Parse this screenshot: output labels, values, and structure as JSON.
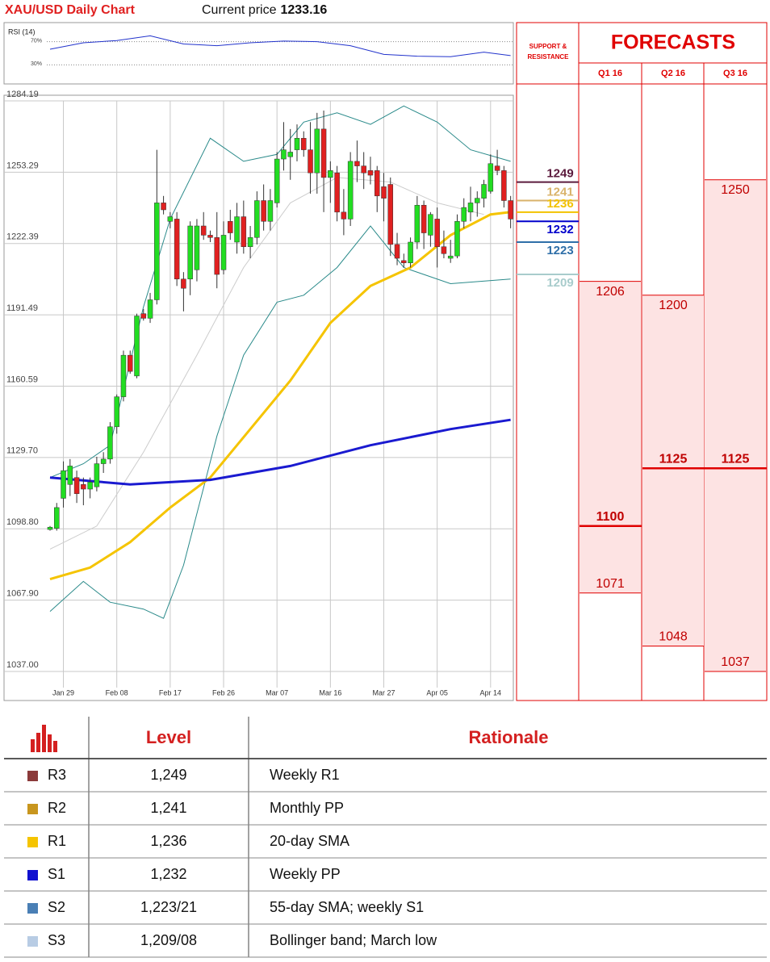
{
  "header": {
    "title": "XAU/USD Daily Chart",
    "price_label": "Current price",
    "price": 1233.16
  },
  "chart_data": {
    "type": "candlestick",
    "categories": [
      null,
      null,
      "Jan 29",
      null,
      null,
      null,
      null,
      null,
      null,
      null,
      "Feb 08",
      null,
      null,
      null,
      null,
      null,
      null,
      null,
      "Feb 17",
      null,
      null,
      null,
      null,
      null,
      null,
      null,
      "Feb 26",
      null,
      null,
      null,
      null,
      null,
      null,
      null,
      "Mar 07",
      null,
      null,
      null,
      null,
      null,
      null,
      null,
      "Mar 16",
      null,
      null,
      null,
      null,
      null,
      null,
      null,
      "Mar 27",
      null,
      null,
      null,
      null,
      null,
      null,
      null,
      "Apr 05",
      null,
      null,
      null,
      null,
      null,
      null,
      null,
      "Apr 14",
      null,
      null,
      null
    ],
    "open": [
      1098.5,
      1099,
      1112,
      1118,
      1121,
      1118,
      1116,
      1117,
      1127,
      1129,
      1143,
      1156,
      1174,
      1165,
      1192,
      1190,
      1198,
      1240,
      1232,
      1233,
      1207,
      1207,
      1211,
      1230,
      1226,
      1225,
      1211,
      1232,
      1223,
      1234,
      1221,
      1225,
      1241,
      1232,
      1240,
      1259,
      1260,
      1263,
      1268,
      1263,
      1253,
      1272,
      1251,
      1253,
      1236,
      1233,
      1258,
      1256,
      1254,
      1254,
      1247,
      1248,
      1222,
      1215,
      1214,
      1223,
      1239,
      1226,
      1233,
      1221,
      1216,
      1217,
      1232,
      1236,
      1240,
      1242,
      1245,
      1256,
      1254,
      1241
    ],
    "high": [
      1100,
      1110,
      1128,
      1129,
      1124,
      1121,
      1121,
      1130,
      1132,
      1145,
      1157,
      1176,
      1176,
      1192,
      1194,
      1201,
      1263,
      1243,
      1236,
      1236,
      1210,
      1232,
      1233,
      1236,
      1228,
      1236,
      1232,
      1237,
      1240,
      1241,
      1230,
      1245,
      1248,
      1246,
      1262,
      1275,
      1272,
      1274,
      1271,
      1275,
      1279,
      1280,
      1258,
      1256,
      1246,
      1262,
      1267,
      1262,
      1260,
      1256,
      1253,
      1251,
      1227,
      1218,
      1225,
      1243,
      1241,
      1236,
      1238,
      1228,
      1224,
      1235,
      1242,
      1247,
      1245,
      1250,
      1261,
      1263,
      1256,
      1243
    ],
    "low": [
      1098,
      1098,
      1108,
      1113,
      1110,
      1109,
      1112,
      1115,
      1123,
      1127,
      1140,
      1154,
      1166,
      1164,
      1189,
      1188,
      1196,
      1235,
      1229,
      1204,
      1193,
      1200,
      1206,
      1224,
      1223,
      1203,
      1209,
      1224,
      1218,
      1218,
      1216,
      1222,
      1228,
      1228,
      1238,
      1254,
      1250,
      1258,
      1260,
      1244,
      1244,
      1236,
      1240,
      1232,
      1226,
      1230,
      1249,
      1246,
      1248,
      1236,
      1232,
      1217,
      1213,
      1212,
      1212,
      1220,
      1220,
      1221,
      1212,
      1216,
      1214,
      1216,
      1229,
      1232,
      1234,
      1238,
      1244,
      1252,
      1238,
      1229
    ],
    "close": [
      1099.5,
      1108,
      1124,
      1126,
      1114,
      1116,
      1119,
      1127,
      1129,
      1143,
      1156,
      1174,
      1167,
      1191,
      1190,
      1198,
      1240,
      1237,
      1234,
      1207,
      1203,
      1230,
      1230,
      1226,
      1225,
      1209,
      1226,
      1227,
      1234,
      1221,
      1225,
      1241,
      1232,
      1241,
      1259,
      1263,
      1262,
      1268,
      1263,
      1253,
      1272,
      1251,
      1254,
      1236,
      1233,
      1258,
      1256,
      1253,
      1252,
      1243,
      1242,
      1222,
      1216,
      1214,
      1223,
      1239,
      1227,
      1235,
      1221,
      1218,
      1217,
      1232,
      1238,
      1240,
      1242,
      1248,
      1257,
      1254,
      1241,
      1233
    ],
    "up_color": "#22dd22",
    "down_color": "#e02020",
    "ylim": [
      1024.4,
      1284.19
    ],
    "yticks": [
      1284.19,
      1253.29,
      1222.39,
      1191.49,
      1160.59,
      {
        "value": 1129.7,
        "label": "1129.70"
      },
      {
        "value": 1098.8,
        "label": "1098.80"
      },
      {
        "value": 1067.9,
        "label": "1067.90"
      },
      {
        "value": 1037,
        "label": "1037.00"
      }
    ],
    "grid": true,
    "lines": [
      {
        "color": "#cccccc",
        "width": 1,
        "x": [
          0,
          7,
          14,
          22,
          29,
          36,
          43,
          51,
          58,
          65
        ],
        "values": [
          1090,
          1100,
          1132,
          1174,
          1212,
          1240,
          1251,
          1249,
          1240,
          1235
        ]
      },
      {
        "color": "#2a8a8a",
        "width": 1,
        "x": [
          0,
          5,
          9,
          14,
          18,
          24,
          29,
          34,
          38,
          43,
          48,
          53,
          58,
          63,
          69
        ],
        "values": [
          1121,
          1127,
          1135,
          1195,
          1233,
          1268,
          1258,
          1261,
          1275,
          1279,
          1274,
          1282,
          1275,
          1263,
          1258
        ]
      },
      {
        "color": "#2a8a8a",
        "width": 1,
        "x": [
          0,
          5,
          9,
          14,
          17,
          20,
          25,
          29,
          34,
          38,
          43,
          48,
          53,
          60,
          69
        ],
        "values": [
          1063,
          1076,
          1067,
          1064,
          1060,
          1083,
          1139,
          1174,
          1197,
          1200,
          1212,
          1230,
          1212,
          1205,
          1207
        ]
      },
      {
        "color": "#f5c400",
        "width": 3,
        "x": [
          0,
          6,
          12,
          18,
          24,
          30,
          36,
          42,
          48,
          54,
          60,
          66,
          69
        ],
        "values": [
          1077,
          1082,
          1093,
          1108,
          1121,
          1142,
          1163,
          1188,
          1204,
          1212,
          1226,
          1235,
          1236
        ]
      },
      {
        "color": "#1a1ad0",
        "width": 3,
        "x": [
          0,
          12,
          24,
          36,
          48,
          60,
          69
        ],
        "values": [
          1121,
          1118,
          1120,
          1126,
          1135,
          1142,
          1146
        ]
      }
    ],
    "levels": [
      {
        "value": 1249,
        "color": "#5b1a3c"
      },
      {
        "value": 1241,
        "color": "#d9b36b"
      },
      {
        "value": 1236,
        "color": "#f2c200"
      },
      {
        "value": 1232,
        "color": "#0000cc"
      },
      {
        "value": 1223,
        "color": "#2f6fa8"
      },
      {
        "value": 1209,
        "color": "#a8cccc"
      }
    ],
    "rsi": {
      "label": "RSI (14)",
      "color": "#2233cc",
      "ylim": [
        0,
        100
      ],
      "yticks": [
        {
          "value": 70,
          "label": "70%"
        },
        {
          "value": 30,
          "label": "30%"
        }
      ],
      "x": [
        0,
        5,
        10,
        15,
        20,
        25,
        30,
        35,
        40,
        45,
        50,
        55,
        60,
        65,
        69
      ],
      "values": [
        57,
        68,
        72,
        80,
        66,
        63,
        68,
        71,
        70,
        63,
        48,
        45,
        44,
        52,
        46
      ]
    }
  },
  "forecasts": {
    "title": "FORECASTS",
    "support_label": [
      "SUPPORT &",
      "RESISTANCE"
    ],
    "quarters": [
      {
        "name": "Q1 16",
        "high": 1206,
        "median": 1100,
        "low": 1071
      },
      {
        "name": "Q2 16",
        "high": 1200,
        "median": 1125,
        "low": 1048
      },
      {
        "name": "Q3 16",
        "high": 1250,
        "median": 1125,
        "low": 1037
      }
    ]
  },
  "table": {
    "header": {
      "level": "Level",
      "rationale": "Rationale"
    },
    "rows": [
      {
        "color": "#8b3a3a",
        "name": "R3",
        "level": "1,249",
        "rationale": "Weekly R1"
      },
      {
        "color": "#c8961e",
        "name": "R2",
        "level": "1,241",
        "rationale": "Monthly PP"
      },
      {
        "color": "#f5c400",
        "name": "R1",
        "level": "1,236",
        "rationale": "20-day SMA"
      },
      {
        "color": "#1010d0",
        "name": "S1",
        "level": "1,232",
        "rationale": "Weekly PP"
      },
      {
        "color": "#4a7fb5",
        "name": "S2",
        "level": "1,223/21",
        "rationale": "55-day SMA; weekly S1"
      },
      {
        "color": "#b8cce4",
        "name": "S3",
        "level": "1,209/08",
        "rationale": "Bollinger band; March low"
      }
    ]
  }
}
